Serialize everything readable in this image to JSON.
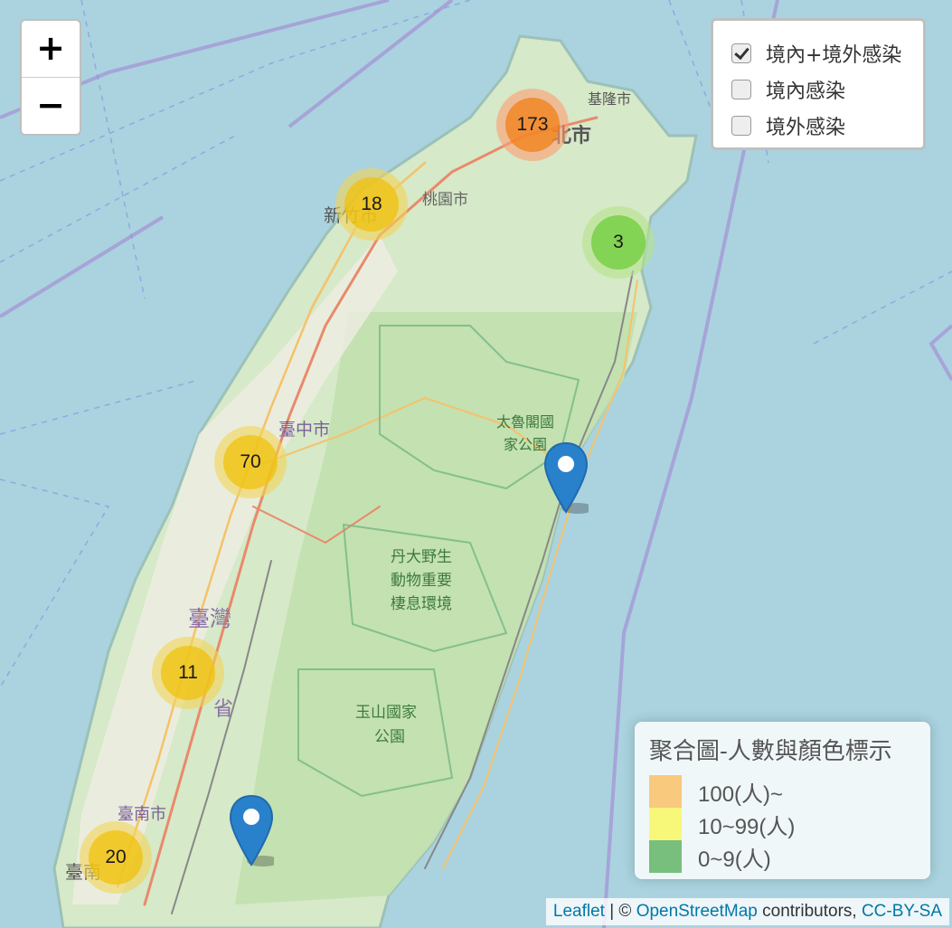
{
  "zoom": {
    "in_label": "+",
    "out_label": "−"
  },
  "layers": [
    {
      "label": "境內+境外感染",
      "checked": true
    },
    {
      "label": "境內感染",
      "checked": false
    },
    {
      "label": "境外感染",
      "checked": false
    }
  ],
  "clusters": [
    {
      "count": "173",
      "level": "large"
    },
    {
      "count": "18",
      "level": "medium"
    },
    {
      "count": "3",
      "level": "small"
    },
    {
      "count": "70",
      "level": "medium"
    },
    {
      "count": "11",
      "level": "medium"
    },
    {
      "count": "20",
      "level": "medium"
    }
  ],
  "legend": {
    "title": "聚合圖-人數與顏色標示",
    "items": [
      {
        "label": "100(人)~",
        "color": "#f9c97d"
      },
      {
        "label": "10~99(人)",
        "color": "#f7f77a"
      },
      {
        "label": "0~9(人)",
        "color": "#78be7c"
      }
    ]
  },
  "attribution": {
    "leaflet": "Leaflet",
    "sep1": " | © ",
    "osm": "OpenStreetMap",
    "mid": " contributors, ",
    "license": "CC-BY-SA"
  },
  "place_labels": {
    "keelung": "基隆市",
    "taipei": "北市",
    "taoyuan": "桃園市",
    "hsinchu": "新竹市",
    "taichung": "臺中市",
    "taroko_1": "太魯閣國",
    "taroko_2": "家公園",
    "dandayeh_1": "丹大野生",
    "dandayeh_2": "動物重要",
    "dandayeh_3": "棲息環境",
    "taiwan_1": "臺灣",
    "taiwan_2": "省",
    "yushan_1": "玉山國家",
    "yushan_2": "公園",
    "tainan": "臺南市",
    "tainan_short": "臺南"
  }
}
